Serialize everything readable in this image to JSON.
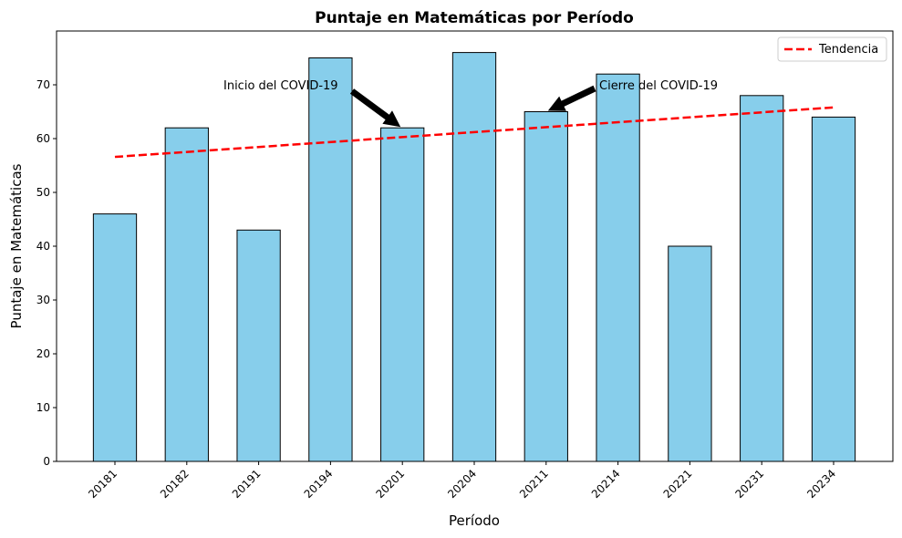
{
  "chart_data": {
    "type": "bar",
    "title": "Puntaje en Matemáticas por Período",
    "xlabel": "Período",
    "ylabel": "Puntaje en Matemáticas",
    "categories": [
      "20181",
      "20182",
      "20191",
      "20194",
      "20201",
      "20204",
      "20211",
      "20214",
      "20221",
      "20231",
      "20234"
    ],
    "values": [
      46,
      62,
      43,
      75,
      62,
      76,
      65,
      72,
      40,
      68,
      64
    ],
    "ylim": [
      0,
      80
    ],
    "yticks": [
      0,
      10,
      20,
      30,
      40,
      50,
      60,
      70
    ],
    "bar_color": "#87CEEB",
    "bar_edge_color": "#000000",
    "grid": false,
    "trend": {
      "name": "Tendencia",
      "start": 56.6,
      "end": 65.8,
      "color": "#ff0000",
      "style": "dashed"
    },
    "legend": {
      "position": "top-right",
      "entries": [
        "Tendencia"
      ]
    },
    "annotations": [
      {
        "text": "Inicio del COVID-19",
        "target_category": "20201",
        "target_value": 62,
        "text_value": 70
      },
      {
        "text": "Cierre del COVID-19",
        "target_category": "20211",
        "target_value": 65,
        "text_value": 70
      }
    ]
  }
}
